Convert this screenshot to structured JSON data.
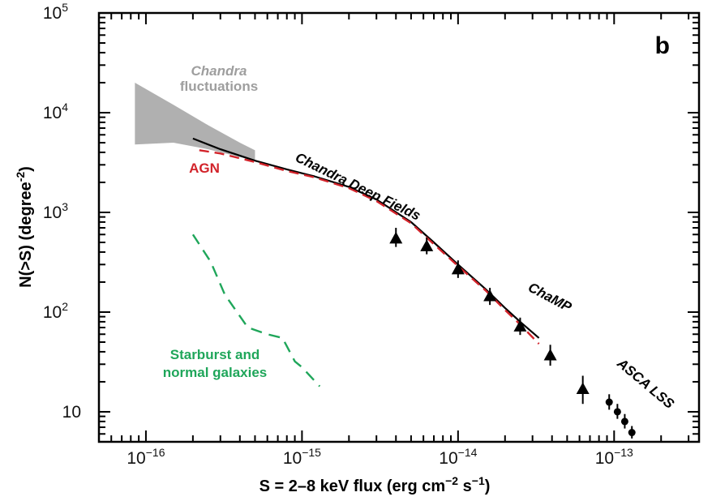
{
  "chart_data": {
    "type": "line",
    "panel_label": "b",
    "xlabel": {
      "main": "S = 2–8 keV flux (erg cm",
      "sup1": "−2",
      "mid": " s",
      "sup2": "−1",
      "end": ")"
    },
    "ylabel": {
      "main": "N(>S) (degree",
      "sup": "-2",
      "end": ")"
    },
    "x_scale": "log",
    "y_scale": "log",
    "xlim": [
      5e-17,
      3.5e-13
    ],
    "ylim": [
      5,
      100000
    ],
    "x_ticks": [
      {
        "value": 1e-16,
        "base": "10",
        "exp": "−16"
      },
      {
        "value": 1e-15,
        "base": "10",
        "exp": "−15"
      },
      {
        "value": 1e-14,
        "base": "10",
        "exp": "−14"
      },
      {
        "value": 1e-13,
        "base": "10",
        "exp": "−13"
      }
    ],
    "y_ticks": [
      {
        "value": 10,
        "base": "10",
        "exp": ""
      },
      {
        "value": 100,
        "base": "10",
        "exp": "2"
      },
      {
        "value": 1000,
        "base": "10",
        "exp": "3"
      },
      {
        "value": 10000,
        "base": "10",
        "exp": "4"
      },
      {
        "value": 100000,
        "base": "10",
        "exp": "5"
      }
    ],
    "fluctuations_band": {
      "label_line1": "Chandra",
      "label_line2": "fluctuations",
      "color": "#b0b0b0",
      "upper": [
        [
          8.5e-17,
          20000
        ],
        [
          1.5e-16,
          12000
        ],
        [
          2.5e-16,
          7500
        ],
        [
          4e-16,
          5000
        ],
        [
          5e-16,
          4200
        ]
      ],
      "lower": [
        [
          8.5e-17,
          4800
        ],
        [
          1.5e-16,
          5000
        ],
        [
          2.5e-16,
          4300
        ],
        [
          4e-16,
          3600
        ],
        [
          5e-16,
          3300
        ]
      ]
    },
    "series": [
      {
        "name": "Chandra Deep Fields",
        "color": "#000000",
        "style": "solid",
        "points": [
          [
            2e-16,
            5500
          ],
          [
            3e-16,
            4300
          ],
          [
            5e-16,
            3300
          ],
          [
            8e-16,
            2700
          ],
          [
            1.2e-15,
            2300
          ],
          [
            2e-15,
            1800
          ],
          [
            3e-15,
            1350
          ],
          [
            5e-15,
            800
          ],
          [
            7e-15,
            500
          ],
          [
            1e-14,
            300
          ],
          [
            1.5e-14,
            170
          ],
          [
            2e-14,
            110
          ],
          [
            2.5e-14,
            80
          ],
          [
            3.3e-14,
            55
          ]
        ]
      },
      {
        "name": "AGN",
        "color": "#d2232a",
        "style": "dashed",
        "points": [
          [
            2.2e-16,
            4200
          ],
          [
            3e-16,
            3900
          ],
          [
            5e-16,
            3200
          ],
          [
            8e-16,
            2600
          ],
          [
            1.2e-15,
            2250
          ],
          [
            2e-15,
            1750
          ],
          [
            3e-15,
            1300
          ],
          [
            5e-15,
            780
          ],
          [
            7e-15,
            480
          ],
          [
            1e-14,
            290
          ],
          [
            1.5e-14,
            165
          ],
          [
            2e-14,
            105
          ],
          [
            2.5e-14,
            75
          ],
          [
            3.3e-14,
            48
          ]
        ]
      },
      {
        "name": "Starburst and normal galaxies",
        "name_line1": "Starburst and",
        "name_line2": "normal galaxies",
        "color": "#1fa65a",
        "style": "dashed",
        "points": [
          [
            2e-16,
            600
          ],
          [
            2.6e-16,
            320
          ],
          [
            3.2e-16,
            150
          ],
          [
            4.5e-16,
            70
          ],
          [
            6e-16,
            60
          ],
          [
            7.5e-16,
            55
          ],
          [
            9e-16,
            32
          ],
          [
            1e-15,
            28
          ],
          [
            1.3e-15,
            18
          ]
        ]
      }
    ],
    "champ_points": {
      "name": "ChaMP",
      "marker": "triangle",
      "points": [
        [
          4e-15,
          550,
          450,
          700
        ],
        [
          6.3e-15,
          460,
          380,
          560
        ],
        [
          1e-14,
          270,
          220,
          330
        ],
        [
          1.6e-14,
          145,
          118,
          175
        ],
        [
          2.5e-14,
          72,
          59,
          88
        ],
        [
          3.9e-14,
          37,
          29,
          47
        ],
        [
          6.3e-14,
          17,
          12,
          23
        ]
      ]
    },
    "asca_points": {
      "name": "ASCA LSS",
      "marker": "circle",
      "points": [
        [
          9.3e-14,
          12.5,
          10.5,
          15
        ],
        [
          1.05e-13,
          10,
          8.5,
          12
        ],
        [
          1.17e-13,
          8,
          6.8,
          9.5
        ],
        [
          1.3e-13,
          6.2,
          5.4,
          7.2
        ]
      ]
    }
  }
}
